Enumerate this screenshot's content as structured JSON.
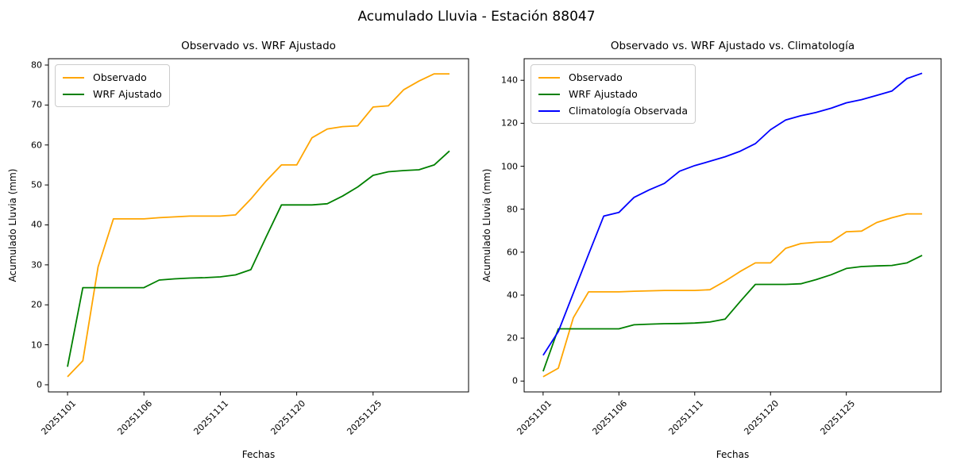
{
  "figure": {
    "title": "Acumulado Lluvia - Estación 88047"
  },
  "axis_color": "#000000",
  "legend_border_color": "#cccccc",
  "chart_data": [
    {
      "type": "line",
      "title": "Observado vs. WRF Ajustado",
      "xlabel": "Fechas",
      "ylabel": "Acumulado Lluvia (mm)",
      "grid": false,
      "legend_position": "upper-left",
      "x": [
        "20251101",
        "20251102",
        "20251103",
        "20251104",
        "20251105",
        "20251106",
        "20251107",
        "20251108",
        "20251109",
        "20251110",
        "20251111",
        "20251112",
        "20251113",
        "20251114",
        "20251115",
        "20251120",
        "20251121",
        "20251122",
        "20251123",
        "20251124",
        "20251125",
        "20251126",
        "20251127",
        "20251128",
        "20251129",
        "20251130"
      ],
      "xtick_indices": [
        0,
        5,
        10,
        15,
        20
      ],
      "xtick_labels": [
        "20251101",
        "20251106",
        "20251111",
        "20251120",
        "20251125"
      ],
      "ylim": [
        -1.79,
        81.59
      ],
      "yticks": [
        0,
        10,
        20,
        30,
        40,
        50,
        60,
        70,
        80
      ],
      "series": [
        {
          "name": "Observado",
          "color": "#ffa500",
          "values": [
            2.0,
            6.0,
            29.5,
            41.5,
            41.5,
            41.5,
            41.8,
            42.0,
            42.2,
            42.2,
            42.2,
            42.5,
            46.5,
            51.0,
            55.0,
            55.0,
            61.8,
            64.0,
            64.6,
            64.8,
            69.5,
            69.8,
            73.8,
            76.0,
            77.8,
            77.8
          ]
        },
        {
          "name": "WRF Ajustado",
          "color": "#008000",
          "values": [
            4.5,
            24.3,
            24.3,
            24.3,
            24.3,
            24.3,
            26.2,
            26.5,
            26.7,
            26.8,
            27.0,
            27.5,
            28.8,
            37.0,
            45.0,
            45.0,
            45.0,
            45.3,
            47.2,
            49.5,
            52.4,
            53.3,
            53.6,
            53.8,
            55.0,
            58.5
          ]
        }
      ]
    },
    {
      "type": "line",
      "title": "Observado vs. WRF Ajustado vs. Climatología",
      "xlabel": "Fechas",
      "ylabel": "Acumulado Lluvia (mm)",
      "grid": false,
      "legend_position": "upper-left",
      "x": [
        "20251101",
        "20251102",
        "20251103",
        "20251104",
        "20251105",
        "20251106",
        "20251107",
        "20251108",
        "20251109",
        "20251110",
        "20251111",
        "20251112",
        "20251113",
        "20251114",
        "20251115",
        "20251120",
        "20251121",
        "20251122",
        "20251123",
        "20251124",
        "20251125",
        "20251126",
        "20251127",
        "20251128",
        "20251129",
        "20251130"
      ],
      "xtick_indices": [
        0,
        5,
        10,
        15,
        20
      ],
      "xtick_labels": [
        "20251101",
        "20251106",
        "20251111",
        "20251120",
        "20251125"
      ],
      "ylim": [
        -5.05,
        150.05
      ],
      "yticks": [
        0,
        20,
        40,
        60,
        80,
        100,
        120,
        140
      ],
      "series": [
        {
          "name": "Observado",
          "color": "#ffa500",
          "values": [
            2.0,
            6.0,
            29.5,
            41.5,
            41.5,
            41.5,
            41.8,
            42.0,
            42.2,
            42.2,
            42.2,
            42.5,
            46.5,
            51.0,
            55.0,
            55.0,
            61.8,
            64.0,
            64.6,
            64.8,
            69.5,
            69.8,
            73.8,
            76.0,
            77.8,
            77.8
          ]
        },
        {
          "name": "WRF Ajustado",
          "color": "#008000",
          "values": [
            4.5,
            24.3,
            24.3,
            24.3,
            24.3,
            24.3,
            26.2,
            26.5,
            26.7,
            26.8,
            27.0,
            27.5,
            28.8,
            37.0,
            45.0,
            45.0,
            45.0,
            45.3,
            47.2,
            49.5,
            52.4,
            53.3,
            53.6,
            53.8,
            55.0,
            58.5
          ]
        },
        {
          "name": "Climatología Observada",
          "color": "#0000ff",
          "values": [
            12.0,
            23.0,
            41.0,
            59.0,
            76.8,
            78.5,
            85.5,
            89.0,
            92.0,
            97.7,
            100.3,
            102.3,
            104.4,
            107.0,
            110.5,
            117.0,
            121.5,
            123.5,
            125.0,
            127.0,
            129.5,
            131.0,
            133.0,
            135.0,
            140.8,
            143.3
          ]
        }
      ]
    }
  ]
}
